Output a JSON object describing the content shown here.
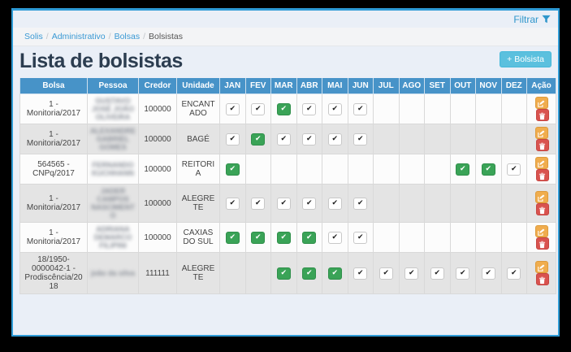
{
  "window": {
    "filter_label": "Filtrar",
    "breadcrumb": [
      "Solis",
      "Administrativo",
      "Bolsas",
      "Bolsistas"
    ],
    "title": "Lista de bolsistas",
    "add_button_label": "+ Bolsista"
  },
  "table": {
    "columns": [
      "Bolsa",
      "Pessoa",
      "Credor",
      "Unidade",
      "JAN",
      "FEV",
      "MAR",
      "ABR",
      "MAI",
      "JUN",
      "JUL",
      "AGO",
      "SET",
      "OUT",
      "NOV",
      "DEZ",
      "Ação"
    ],
    "rows": [
      {
        "bolsa": "1 - Monitoria/2017",
        "pessoa": "GUSTAVO JOSÉ JOÃO OLIVEIRA",
        "pessoa_blurred": true,
        "credor": "100000",
        "unidade": "ENCANTADO",
        "months": [
          "check",
          "check",
          "green",
          "check",
          "check",
          "check",
          "",
          "",
          "",
          "",
          "",
          ""
        ]
      },
      {
        "bolsa": "1 - Monitoria/2017",
        "pessoa": "ALEXANDRE GABRIEL GOMES",
        "pessoa_blurred": true,
        "credor": "100000",
        "unidade": "BAGÉ",
        "months": [
          "check",
          "green",
          "check",
          "check",
          "check",
          "check",
          "",
          "",
          "",
          "",
          "",
          ""
        ]
      },
      {
        "bolsa": "564565 - CNPq/2017",
        "pessoa": "FERNANDO KUCHHANN",
        "pessoa_blurred": true,
        "credor": "100000",
        "unidade": "REITORIA",
        "months": [
          "green",
          "",
          "",
          "",
          "",
          "",
          "",
          "",
          "",
          "green",
          "green",
          "check"
        ]
      },
      {
        "bolsa": "1 - Monitoria/2017",
        "pessoa": "JADER CAMPOS NASCIMENTO",
        "pessoa_blurred": true,
        "credor": "100000",
        "unidade": "ALEGRETE",
        "months": [
          "check",
          "check",
          "check",
          "check",
          "check",
          "check",
          "",
          "",
          "",
          "",
          "",
          ""
        ]
      },
      {
        "bolsa": "1 - Monitoria/2017",
        "pessoa": "ADRIANA DEMARCO FILIPINI",
        "pessoa_blurred": true,
        "credor": "100000",
        "unidade": "CAXIAS DO SUL",
        "months": [
          "green",
          "green",
          "green",
          "green",
          "check",
          "check",
          "",
          "",
          "",
          "",
          "",
          ""
        ]
      },
      {
        "bolsa": "18/1950-0000042-1 - Prodiscência/2018",
        "pessoa": "joão da silva",
        "pessoa_blurred": true,
        "pessoa_lowercase": true,
        "credor": "111111",
        "unidade": "ALEGRETE",
        "months": [
          "",
          "",
          "green",
          "green",
          "green",
          "check",
          "check",
          "check",
          "check",
          "check",
          "check",
          "check"
        ]
      }
    ],
    "check_glyph": "✔",
    "action_icons": [
      "edit-icon",
      "trash-icon"
    ]
  },
  "colors": {
    "window_border_blue": "#2e9bd6",
    "content_background": "#eaeff7",
    "table_header_blue": "#4793c8",
    "link_blue": "#3a99d4",
    "check_green": "#3aa357",
    "edit_orange": "#f0ad4e",
    "delete_red": "#d9534f",
    "add_button_blue": "#5bc0de"
  }
}
